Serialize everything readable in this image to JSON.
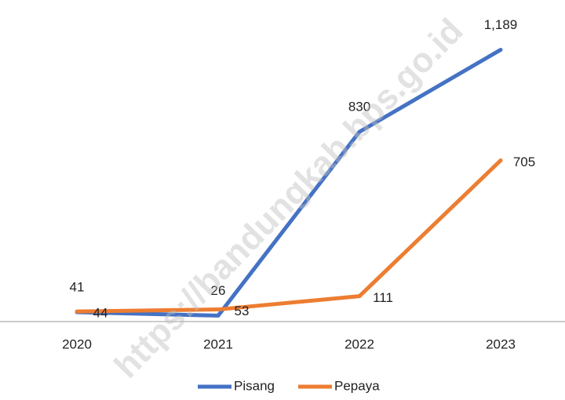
{
  "chart_data": {
    "type": "line",
    "watermark": "https://bandungkab.bps.go.id",
    "categories": [
      "2020",
      "2021",
      "2022",
      "2023"
    ],
    "series": [
      {
        "name": "Pisang",
        "color": "#4472c4",
        "values": [
          41,
          26,
          830,
          1189
        ],
        "value_labels": [
          "41",
          "26",
          "830",
          "1,189"
        ]
      },
      {
        "name": "Pepaya",
        "color": "#ed7d31",
        "values": [
          44,
          53,
          111,
          705
        ]
      }
    ],
    "ylim": [
      0,
      1400
    ]
  }
}
